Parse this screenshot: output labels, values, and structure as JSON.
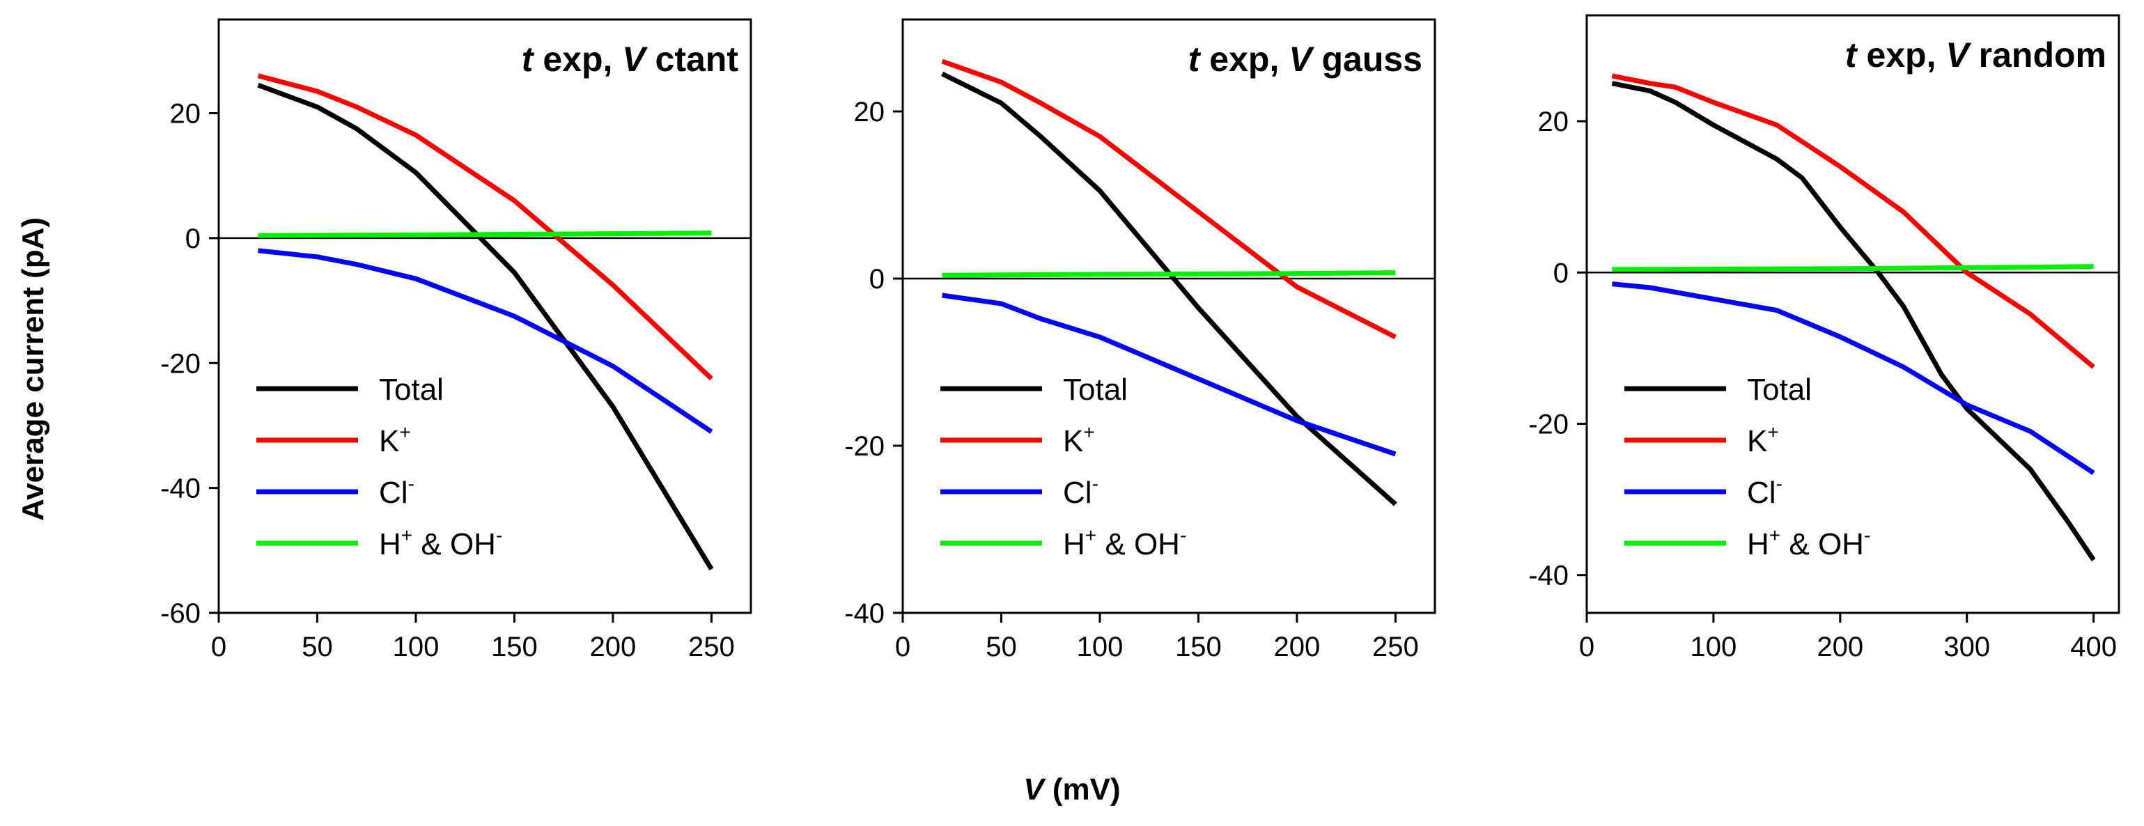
{
  "figure": {
    "ylabel": "Average current (pA)",
    "xlabel_var": "V",
    "xlabel_unit": " (mV)"
  },
  "legend": [
    {
      "label": "Total",
      "sup": "",
      "suffix": "",
      "color": "#000000"
    },
    {
      "label": "K",
      "sup": "+",
      "suffix": "",
      "color": "#ff0000"
    },
    {
      "label": "Cl",
      "sup": "-",
      "suffix": "",
      "color": "#0000ff"
    },
    {
      "label": "H",
      "sup": "+",
      "suffix": " & OH",
      "sup2": "-",
      "color": "#00ee00"
    }
  ],
  "chart_data": [
    {
      "type": "line",
      "title": {
        "t": "t",
        "mid": " exp, ",
        "v": "V",
        "rest": " ctant"
      },
      "xlim": [
        0,
        270
      ],
      "ylim": [
        -60,
        35
      ],
      "xticks": [
        0,
        50,
        100,
        150,
        200,
        250
      ],
      "yticks": [
        -60,
        -40,
        -20,
        0,
        20
      ],
      "series": [
        {
          "name": "Total",
          "color": "#000000",
          "x": [
            20,
            50,
            70,
            100,
            150,
            200,
            250
          ],
          "y": [
            24.5,
            21,
            17.5,
            10.5,
            -5.5,
            -27,
            -53
          ]
        },
        {
          "name": "K+",
          "color": "#ff0000",
          "x": [
            20,
            50,
            70,
            100,
            150,
            200,
            250
          ],
          "y": [
            26,
            23.5,
            21,
            16.5,
            6,
            -7.5,
            -22.5
          ]
        },
        {
          "name": "Cl-",
          "color": "#0000ff",
          "x": [
            20,
            50,
            70,
            100,
            150,
            200,
            250
          ],
          "y": [
            -2,
            -3,
            -4.2,
            -6.5,
            -12.5,
            -20.5,
            -31
          ]
        },
        {
          "name": "H+ & OH-",
          "color": "#00ee00",
          "x": [
            20,
            100,
            200,
            250
          ],
          "y": [
            0.4,
            0.5,
            0.7,
            0.8
          ]
        }
      ]
    },
    {
      "type": "line",
      "title": {
        "t": "t",
        "mid": " exp, ",
        "v": "V",
        "rest": " gauss"
      },
      "xlim": [
        0,
        270
      ],
      "ylim": [
        -40,
        31
      ],
      "xticks": [
        0,
        50,
        100,
        150,
        200,
        250
      ],
      "yticks": [
        -40,
        -20,
        0,
        20
      ],
      "series": [
        {
          "name": "Total",
          "color": "#000000",
          "x": [
            20,
            50,
            70,
            100,
            150,
            200,
            250
          ],
          "y": [
            24.5,
            21,
            17,
            10.5,
            -3.5,
            -16.5,
            -27
          ]
        },
        {
          "name": "K+",
          "color": "#ff0000",
          "x": [
            20,
            50,
            70,
            100,
            150,
            200,
            250
          ],
          "y": [
            26,
            23.5,
            21,
            17,
            8,
            -1,
            -7
          ]
        },
        {
          "name": "Cl-",
          "color": "#0000ff",
          "x": [
            20,
            50,
            70,
            100,
            150,
            200,
            250
          ],
          "y": [
            -2,
            -3,
            -4.8,
            -7,
            -12,
            -17,
            -21
          ]
        },
        {
          "name": "H+ & OH-",
          "color": "#00ee00",
          "x": [
            20,
            100,
            200,
            250
          ],
          "y": [
            0.4,
            0.5,
            0.6,
            0.7
          ]
        }
      ]
    },
    {
      "type": "line",
      "title": {
        "t": "t",
        "mid": " exp, ",
        "v": "V",
        "rest": " random"
      },
      "xlim": [
        0,
        420
      ],
      "ylim": [
        -45,
        34
      ],
      "xticks": [
        0,
        100,
        200,
        300,
        400
      ],
      "yticks": [
        -40,
        -20,
        0,
        20
      ],
      "series": [
        {
          "name": "Total",
          "color": "#000000",
          "x": [
            20,
            50,
            70,
            100,
            150,
            170,
            200,
            230,
            250,
            280,
            300,
            350,
            380,
            400
          ],
          "y": [
            25,
            24,
            22.5,
            19.5,
            15,
            12.5,
            6,
            0,
            -4.5,
            -13.5,
            -18,
            -26,
            -33,
            -38
          ]
        },
        {
          "name": "K+",
          "color": "#ff0000",
          "x": [
            20,
            50,
            70,
            100,
            150,
            200,
            250,
            300,
            350,
            400
          ],
          "y": [
            26,
            25,
            24.5,
            22.5,
            19.5,
            14,
            8,
            0,
            -5.5,
            -12.5
          ]
        },
        {
          "name": "Cl-",
          "color": "#0000ff",
          "x": [
            20,
            50,
            100,
            150,
            200,
            250,
            300,
            350,
            400
          ],
          "y": [
            -1.5,
            -2,
            -3.5,
            -5,
            -8.5,
            -12.5,
            -17.5,
            -21,
            -26.5
          ]
        },
        {
          "name": "H+ & OH-",
          "color": "#00ee00",
          "x": [
            20,
            200,
            350,
            400
          ],
          "y": [
            0.4,
            0.5,
            0.7,
            0.8
          ]
        }
      ]
    }
  ]
}
